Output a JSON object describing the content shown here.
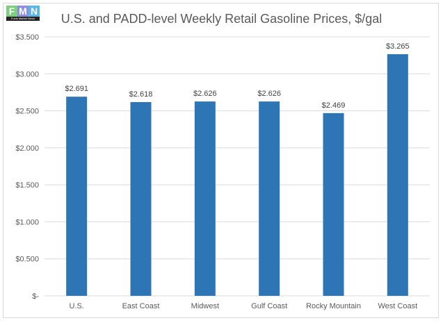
{
  "logo": {
    "letters": [
      "F",
      "M",
      "N"
    ],
    "caption": "Fuels Market News"
  },
  "chart_data": {
    "type": "bar",
    "title": "U.S. and PADD-level Weekly Retail Gasoline Prices, $/gal",
    "categories": [
      "U.S.",
      "East Coast",
      "Midwest",
      "Gulf Coast",
      "Rocky Mountain",
      "West Coast"
    ],
    "values": [
      2.691,
      2.618,
      2.626,
      2.626,
      2.469,
      3.265
    ],
    "data_labels": [
      "$2.691",
      "$2.618",
      "$2.626",
      "$2.626",
      "$2.469",
      "$3.265"
    ],
    "yticks": [
      0,
      0.5,
      1,
      1.5,
      2,
      2.5,
      3,
      3.5
    ],
    "ytick_labels": [
      "$-",
      "$0.500",
      "$1.000",
      "$1.500",
      "$2.000",
      "$2.500",
      "$3.000",
      "$3.500"
    ],
    "ylim": [
      0,
      3.5
    ],
    "xlabel": "",
    "ylabel": "",
    "grid": true,
    "legend": "none",
    "bar_color": "#2e75b6"
  }
}
